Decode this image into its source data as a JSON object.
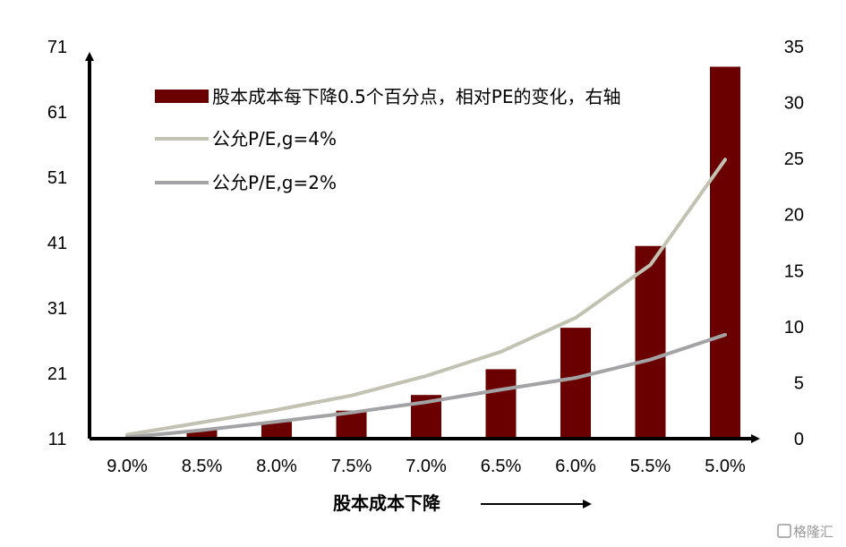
{
  "chart_data": {
    "type": "bar",
    "title": "",
    "xlabel": "股本成本下降",
    "categories": [
      "9.0%",
      "8.5%",
      "8.0%",
      "7.5%",
      "7.0%",
      "6.5%",
      "6.0%",
      "5.5%",
      "5.0%"
    ],
    "left_axis": {
      "ticks": [
        11,
        21,
        31,
        41,
        51,
        61,
        71
      ],
      "range": [
        11,
        71
      ]
    },
    "right_axis": {
      "ticks": [
        0,
        5,
        10,
        15,
        20,
        25,
        30,
        35
      ],
      "range": [
        0,
        35
      ]
    },
    "series": [
      {
        "name": "股本成本每下降0.5个百分点，相对PE的变化，右轴",
        "kind": "bar",
        "axis": "right",
        "color": "#6b0000",
        "values": [
          0,
          0.8,
          1.5,
          2.5,
          3.9,
          6.2,
          9.9,
          17.2,
          33.2
        ]
      },
      {
        "name": "公允P/E,g=4%",
        "kind": "line",
        "axis": "left",
        "color": "#c2c2b3",
        "values": [
          11.6,
          13.5,
          15.4,
          17.6,
          20.6,
          24.3,
          29.5,
          37.6,
          53.7
        ]
      },
      {
        "name": "公允P/E,g=2%",
        "kind": "line",
        "axis": "left",
        "color": "#a3a3a6",
        "values": [
          11.2,
          12.3,
          13.6,
          15.0,
          16.6,
          18.5,
          20.3,
          23.1,
          26.9
        ]
      }
    ],
    "legend_position": "top-left",
    "grid": false
  },
  "watermark": "格隆汇"
}
